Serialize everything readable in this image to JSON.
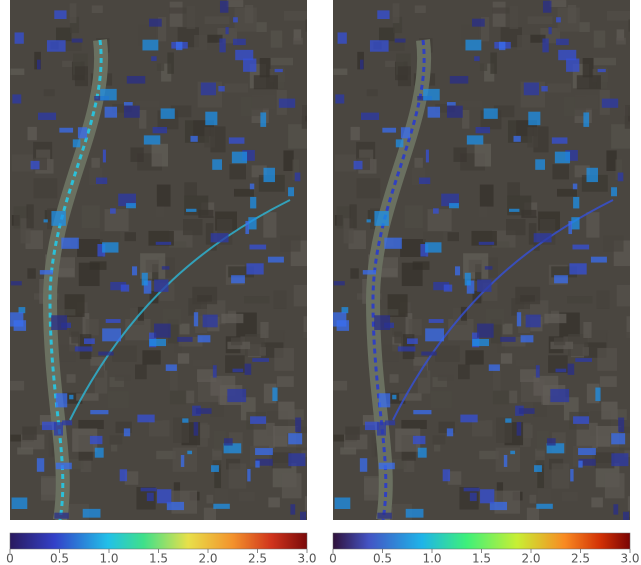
{
  "panels": [
    {
      "colorbar": {
        "lim": [
          0,
          3
        ],
        "ticks": [
          0,
          0.5,
          {
            "value": 1,
            "label": "1.0"
          },
          1.5,
          {
            "value": 2,
            "label": "2.0"
          },
          2.5,
          {
            "value": 3,
            "label": "3.0"
          }
        ]
      }
    },
    {
      "colorbar": {
        "lim": [
          0,
          3
        ],
        "ticks": [
          0,
          0.5,
          {
            "value": 1,
            "label": "1.0"
          },
          1.5,
          {
            "value": 2,
            "label": "2.0"
          },
          2.5,
          {
            "value": 3,
            "label": "3.0"
          }
        ]
      }
    }
  ]
}
